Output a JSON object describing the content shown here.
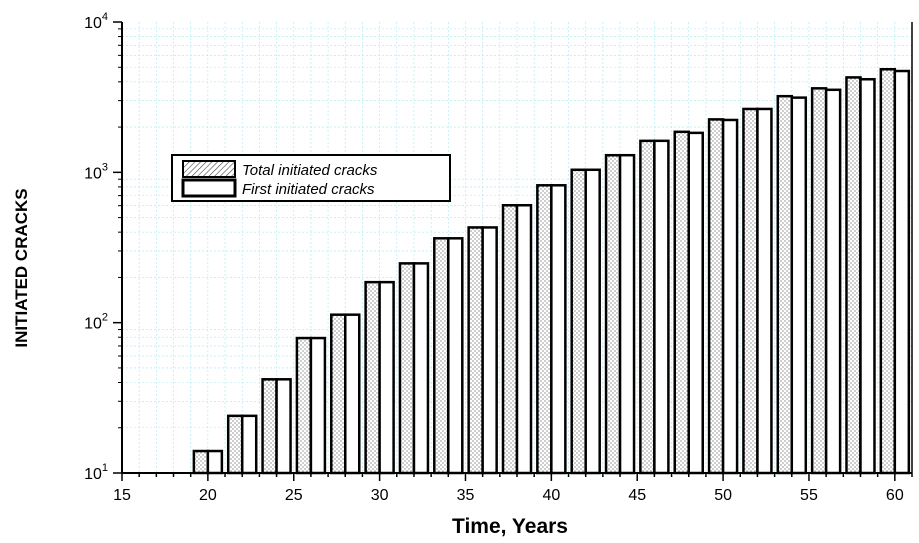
{
  "chart_data": {
    "type": "bar",
    "xlabel": "Time, Years",
    "ylabel": "INITIATED CRACKS",
    "xlim": [
      15,
      61
    ],
    "ylim": [
      10,
      10000
    ],
    "yscale": "log",
    "xticks": [
      15,
      20,
      25,
      30,
      35,
      40,
      45,
      50,
      55,
      60
    ],
    "yticks": [
      {
        "value": 10,
        "base": "10",
        "exp": "1"
      },
      {
        "value": 100,
        "base": "10",
        "exp": "2"
      },
      {
        "value": 1000,
        "base": "10",
        "exp": "3"
      },
      {
        "value": 10000,
        "base": "10",
        "exp": "4"
      }
    ],
    "grid": true,
    "legend_position": "upper-left",
    "x": [
      16,
      18,
      20,
      22,
      24,
      26,
      28,
      30,
      32,
      34,
      36,
      38,
      40,
      42,
      44,
      46,
      48,
      50,
      52,
      54,
      56,
      58,
      60
    ],
    "series": [
      {
        "name": "Total initiated cracks",
        "pattern": "dotted",
        "values": [
          10,
          10,
          14,
          24,
          42,
          79,
          113,
          186,
          248,
          364,
          430,
          604,
          820,
          1040,
          1300,
          1620,
          1860,
          2250,
          2640,
          3210,
          3620,
          4280,
          4850
        ]
      },
      {
        "name": "First initiated cracks",
        "pattern": "plain",
        "values": [
          10,
          10,
          14,
          24,
          42,
          79,
          113,
          186,
          248,
          364,
          430,
          604,
          820,
          1040,
          1300,
          1620,
          1830,
          2230,
          2640,
          3140,
          3540,
          4160,
          4720
        ]
      }
    ],
    "legend_pattern_labels": {
      "dotted": "hatched",
      "plain": "plain"
    }
  }
}
